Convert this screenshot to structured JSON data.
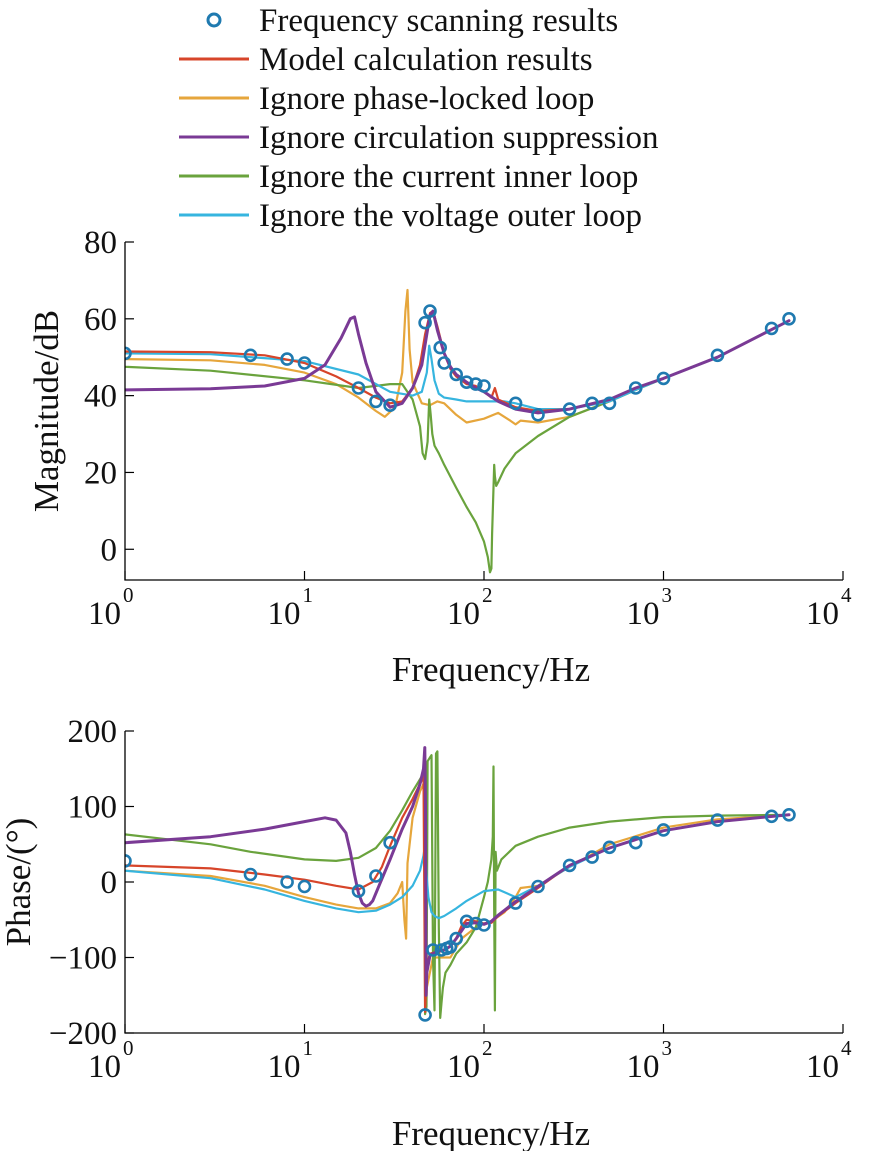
{
  "legend": [
    {
      "label": "Frequency scanning results",
      "color": "#1f7ab0",
      "marker": "circle"
    },
    {
      "label": "Model calculation results",
      "color": "#d7452a"
    },
    {
      "label": "Ignore phase-locked loop",
      "color": "#e6a63c"
    },
    {
      "label": "Ignore circulation suppression",
      "color": "#7a3a95"
    },
    {
      "label": "Ignore the current inner loop",
      "color": "#6aa33d"
    },
    {
      "label": "Ignore the voltage outer loop",
      "color": "#36b5df"
    }
  ],
  "chart_data": [
    {
      "type": "line",
      "xlabel": "Frequency/Hz",
      "ylabel": "Magnitude/dB",
      "xscale": "log",
      "xlim": [
        1,
        10000
      ],
      "ylim": [
        -8,
        80
      ],
      "xticks": [
        {
          "base": "10",
          "exp": "0"
        },
        {
          "base": "10",
          "exp": "1"
        },
        {
          "base": "10",
          "exp": "2"
        },
        {
          "base": "10",
          "exp": "3"
        },
        {
          "base": "10",
          "exp": "4"
        }
      ],
      "yticks": [
        "0",
        "20",
        "40",
        "60",
        "80"
      ],
      "ytick_values": [
        0,
        20,
        40,
        60,
        80
      ],
      "series": [
        {
          "name": "Frequency scanning results",
          "style": "markers",
          "color": "#1f7ab0",
          "x": [
            1,
            5,
            8,
            10,
            20,
            25,
            30,
            47,
            50,
            57,
            60,
            70,
            80,
            90,
            100,
            150,
            200,
            300,
            400,
            500,
            700,
            1000,
            2000,
            4000,
            5000
          ],
          "y": [
            51,
            50.5,
            49.5,
            48.5,
            42,
            38.5,
            37.5,
            59,
            62,
            52.5,
            48.5,
            45.5,
            43.5,
            43,
            42.5,
            38,
            35,
            36.5,
            38,
            38,
            42,
            44.5,
            50.5,
            57.5,
            60
          ]
        },
        {
          "name": "Model calculation results",
          "style": "line",
          "color": "#d7452a",
          "x": [
            1,
            3,
            6,
            10,
            15,
            20,
            25,
            30,
            35,
            40,
            44,
            47,
            50,
            52,
            55,
            60,
            65,
            70,
            80,
            90,
            100,
            110,
            115,
            120,
            150,
            200,
            300,
            500,
            700,
            1000,
            2000,
            5000
          ],
          "y": [
            51.5,
            51.3,
            50.5,
            48.5,
            45,
            42,
            39.5,
            38,
            38.5,
            42,
            48,
            56,
            61.5,
            62,
            58,
            51,
            47,
            45,
            43,
            42.5,
            41,
            39.5,
            42,
            39,
            37,
            36,
            36.5,
            39,
            42,
            44.5,
            50,
            59.5
          ]
        },
        {
          "name": "Ignore phase-locked loop",
          "style": "line",
          "color": "#e6a63c",
          "x": [
            1,
            3,
            6,
            10,
            15,
            20,
            25,
            28,
            32,
            35,
            36.5,
            37.5,
            38.5,
            40,
            45,
            50,
            55,
            60,
            70,
            80,
            100,
            120,
            140,
            150,
            160,
            200,
            300,
            500,
            700,
            1000,
            2000,
            5000
          ],
          "y": [
            49.5,
            49.2,
            48,
            46,
            43,
            39.5,
            36,
            34.5,
            37,
            46,
            62,
            67.5,
            52,
            43.5,
            38,
            37.5,
            38.5,
            38,
            35,
            33,
            34,
            35.5,
            33.5,
            32.5,
            33.5,
            33,
            34.5,
            38.5,
            41.5,
            44.5,
            50,
            59.5
          ]
        },
        {
          "name": "Ignore circulation suppression",
          "style": "line",
          "color": "#7a3a95",
          "x": [
            1,
            3,
            6,
            10,
            13,
            16,
            18,
            19,
            20,
            22,
            25,
            30,
            35,
            40,
            45,
            48,
            50,
            52,
            55,
            60,
            65,
            70,
            80,
            90,
            100,
            120,
            150,
            200,
            300,
            500,
            700,
            1000,
            2000,
            5000
          ],
          "y": [
            41.5,
            41.8,
            42.5,
            44.5,
            48,
            55,
            60,
            60.5,
            56,
            48.5,
            41,
            37,
            38,
            42,
            48,
            56,
            61,
            62,
            57,
            51,
            47.5,
            45.5,
            43.5,
            42,
            41,
            38.5,
            36.5,
            35.5,
            36.5,
            39,
            42,
            44.5,
            50,
            59.5
          ]
        },
        {
          "name": "Ignore the current inner loop",
          "style": "line",
          "color": "#6aa33d",
          "x": [
            1,
            3,
            10,
            20,
            30,
            35,
            40,
            44,
            45.5,
            47,
            48.5,
            49.5,
            50.5,
            51.5,
            53,
            56,
            60,
            70,
            80,
            90,
            100,
            105,
            108,
            110,
            111,
            113,
            114,
            115,
            117,
            120,
            130,
            150,
            200,
            300,
            500,
            700,
            1000,
            2000,
            5000
          ],
          "y": [
            47.5,
            46.5,
            44,
            42,
            43,
            43,
            39,
            32,
            25,
            23.5,
            28,
            39,
            35,
            30,
            27,
            25,
            22,
            16,
            11,
            7,
            2,
            -2,
            -6,
            -5,
            4,
            16,
            22,
            19,
            16.5,
            17.5,
            21,
            25,
            29.5,
            34.5,
            38.5,
            41.5,
            44.5,
            50,
            59.5
          ]
        },
        {
          "name": "Ignore the voltage outer loop",
          "style": "line",
          "color": "#36b5df",
          "x": [
            1,
            3,
            10,
            20,
            30,
            40,
            45,
            48,
            49.5,
            51,
            53,
            56,
            60,
            70,
            80,
            100,
            130,
            150,
            200,
            300,
            500,
            700,
            1000,
            2000,
            5000
          ],
          "y": [
            51,
            50.8,
            49,
            45.5,
            41,
            40,
            41,
            46,
            53,
            49.5,
            44,
            40.5,
            39.5,
            39,
            38.5,
            38.5,
            38.5,
            38,
            36.5,
            36.5,
            38.5,
            41.5,
            44.5,
            50,
            59.5
          ]
        }
      ]
    },
    {
      "type": "line",
      "xlabel": "Frequency/Hz",
      "ylabel": "Phase/(°)",
      "xscale": "log",
      "xlim": [
        1,
        10000
      ],
      "ylim": [
        -200,
        200
      ],
      "xticks": [
        {
          "base": "10",
          "exp": "0"
        },
        {
          "base": "10",
          "exp": "1"
        },
        {
          "base": "10",
          "exp": "2"
        },
        {
          "base": "10",
          "exp": "3"
        },
        {
          "base": "10",
          "exp": "4"
        }
      ],
      "yticks": [
        "200",
        "100",
        "0",
        "−100",
        "−200"
      ],
      "ytick_values": [
        200,
        100,
        0,
        -100,
        -200
      ],
      "series": [
        {
          "name": "Frequency scanning results",
          "style": "markers",
          "color": "#1f7ab0",
          "x": [
            1,
            5,
            8,
            10,
            20,
            25,
            30,
            47,
            52,
            58,
            62,
            65,
            70,
            80,
            90,
            100,
            150,
            200,
            300,
            400,
            500,
            700,
            1000,
            2000,
            4000,
            5000
          ],
          "y": [
            28,
            10,
            0,
            -6,
            -12,
            8,
            52,
            -176,
            -90,
            -90,
            -88,
            -86,
            -75,
            -52,
            -55,
            -57,
            -28,
            -6,
            22,
            33,
            46,
            52,
            69,
            82,
            87,
            89
          ]
        },
        {
          "name": "Model calculation results",
          "style": "line",
          "color": "#d7452a",
          "x": [
            1,
            3,
            6,
            10,
            15,
            20,
            24,
            27,
            30,
            35,
            40,
            44,
            46,
            47,
            47.5,
            48,
            50,
            55,
            60,
            65,
            70,
            75,
            80,
            90,
            100,
            110,
            120,
            150,
            200,
            300,
            500,
            1000,
            2000,
            5000
          ],
          "y": [
            22,
            18,
            10,
            3,
            -5,
            -10,
            0,
            20,
            48,
            85,
            110,
            130,
            140,
            -172,
            -140,
            -110,
            -95,
            -92,
            -90,
            -85,
            -75,
            -58,
            -50,
            -52,
            -55,
            -54,
            -45,
            -28,
            -8,
            22,
            45,
            68,
            80,
            89
          ]
        },
        {
          "name": "Ignore phase-locked loop",
          "style": "line",
          "color": "#e6a63c",
          "x": [
            1,
            3,
            6,
            10,
            15,
            20,
            25,
            30,
            33,
            35,
            36,
            36.8,
            37.5,
            40,
            44,
            46,
            47,
            47.5,
            48,
            52,
            58,
            65,
            75,
            90,
            100,
            110,
            130,
            150,
            160,
            200,
            300,
            500,
            1000,
            2000,
            5000
          ],
          "y": [
            15,
            8,
            -5,
            -20,
            -30,
            -35,
            -35,
            -28,
            -15,
            0,
            -50,
            -75,
            25,
            85,
            120,
            130,
            140,
            -170,
            -140,
            -100,
            -100,
            -100,
            -75,
            -60,
            -55,
            -52,
            -40,
            -20,
            -8,
            -5,
            20,
            50,
            72,
            83,
            89
          ]
        },
        {
          "name": "Ignore circulation suppression",
          "style": "line",
          "color": "#7a3a95",
          "x": [
            1,
            3,
            6,
            10,
            13,
            15,
            17,
            18,
            19,
            20,
            21,
            22,
            23,
            24,
            26,
            30,
            35,
            40,
            44,
            46,
            46.8,
            47.2,
            47.6,
            48,
            50,
            55,
            60,
            65,
            70,
            80,
            90,
            100,
            110,
            120,
            150,
            200,
            300,
            500,
            1000,
            2000,
            5000
          ],
          "y": [
            52,
            60,
            70,
            80,
            85,
            82,
            65,
            40,
            10,
            -15,
            -28,
            -32,
            -30,
            -25,
            -5,
            30,
            70,
            100,
            130,
            150,
            178,
            100,
            -150,
            -120,
            -97,
            -92,
            -90,
            -85,
            -75,
            -55,
            -54,
            -56,
            -52,
            -44,
            -26,
            -6,
            22,
            45,
            68,
            80,
            89
          ]
        },
        {
          "name": "Ignore the current inner loop",
          "style": "line",
          "color": "#6aa33d",
          "x": [
            1,
            3,
            5,
            10,
            15,
            20,
            25,
            30,
            35,
            40,
            45,
            46.5,
            47,
            47.8,
            48.5,
            50,
            51,
            52,
            53,
            54,
            55,
            56,
            57,
            58,
            59,
            61,
            65,
            70,
            80,
            90,
            100,
            105,
            110,
            112,
            113,
            114,
            115,
            116,
            118,
            125,
            150,
            200,
            300,
            500,
            1000,
            2000,
            5000
          ],
          "y": [
            63,
            50,
            40,
            30,
            28,
            32,
            45,
            68,
            95,
            120,
            140,
            148,
            -175,
            -165,
            160,
            165,
            168,
            -100,
            -170,
            170,
            173,
            -60,
            -180,
            -160,
            -140,
            -120,
            -110,
            -95,
            -80,
            -60,
            -20,
            0,
            30,
            60,
            153,
            -40,
            -170,
            40,
            15,
            30,
            48,
            60,
            72,
            80,
            86,
            88,
            89
          ]
        },
        {
          "name": "Ignore the voltage outer loop",
          "style": "line",
          "color": "#36b5df",
          "x": [
            1,
            3,
            6,
            10,
            15,
            20,
            25,
            30,
            35,
            40,
            44,
            46,
            47,
            47.8,
            49,
            51,
            53,
            56,
            60,
            70,
            80,
            100,
            120,
            150,
            200,
            300,
            500,
            1000,
            2000,
            5000
          ],
          "y": [
            15,
            5,
            -10,
            -25,
            -35,
            -40,
            -38,
            -30,
            -20,
            -5,
            15,
            35,
            50,
            10,
            -20,
            -40,
            -45,
            -48,
            -45,
            -35,
            -25,
            -12,
            -10,
            -20,
            -5,
            20,
            45,
            68,
            80,
            89
          ]
        }
      ]
    }
  ]
}
